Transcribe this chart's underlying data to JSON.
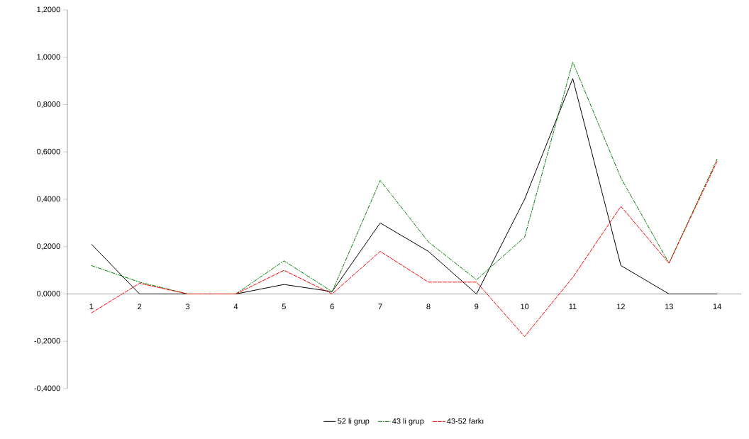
{
  "chart_data": {
    "type": "line",
    "categories": [
      "1",
      "2",
      "3",
      "4",
      "5",
      "6",
      "7",
      "8",
      "9",
      "10",
      "11",
      "12",
      "13",
      "14"
    ],
    "series": [
      {
        "name": "52 li grup",
        "color": "#000000",
        "line_style": "solid",
        "values": [
          0.21,
          0.0,
          0.0,
          0.0,
          0.04,
          0.01,
          0.3,
          0.18,
          0.0,
          0.4,
          0.91,
          0.12,
          0.0,
          0.0
        ]
      },
      {
        "name": "43 li grup",
        "color": "#008000",
        "line_style": "dashdot",
        "values": [
          0.12,
          0.05,
          0.0,
          0.0,
          0.14,
          0.01,
          0.48,
          0.22,
          0.06,
          0.24,
          0.98,
          0.49,
          0.13,
          0.57
        ]
      },
      {
        "name": "43-52 farkı",
        "color": "#ff0000",
        "line_style": "dashed",
        "values": [
          -0.08,
          0.045,
          0.0,
          0.0,
          0.1,
          0.0,
          0.18,
          0.05,
          0.05,
          -0.18,
          0.07,
          0.37,
          0.13,
          0.56
        ]
      }
    ],
    "ylim": [
      -0.4,
      1.2
    ],
    "yticks": [
      {
        "value": -0.4,
        "label": "-0,4000"
      },
      {
        "value": -0.2,
        "label": "-0,2000"
      },
      {
        "value": 0,
        "label": "0,0000"
      },
      {
        "value": 0.2,
        "label": "0,2000"
      },
      {
        "value": 0.4,
        "label": "0,4000"
      },
      {
        "value": 0.6,
        "label": "0,6000"
      },
      {
        "value": 0.8,
        "label": "0,8000"
      },
      {
        "value": 1.0,
        "label": "1,0000"
      },
      {
        "value": 1.2,
        "label": "1,2000"
      }
    ],
    "grid": false,
    "legend": "bottom",
    "marker": "none"
  }
}
